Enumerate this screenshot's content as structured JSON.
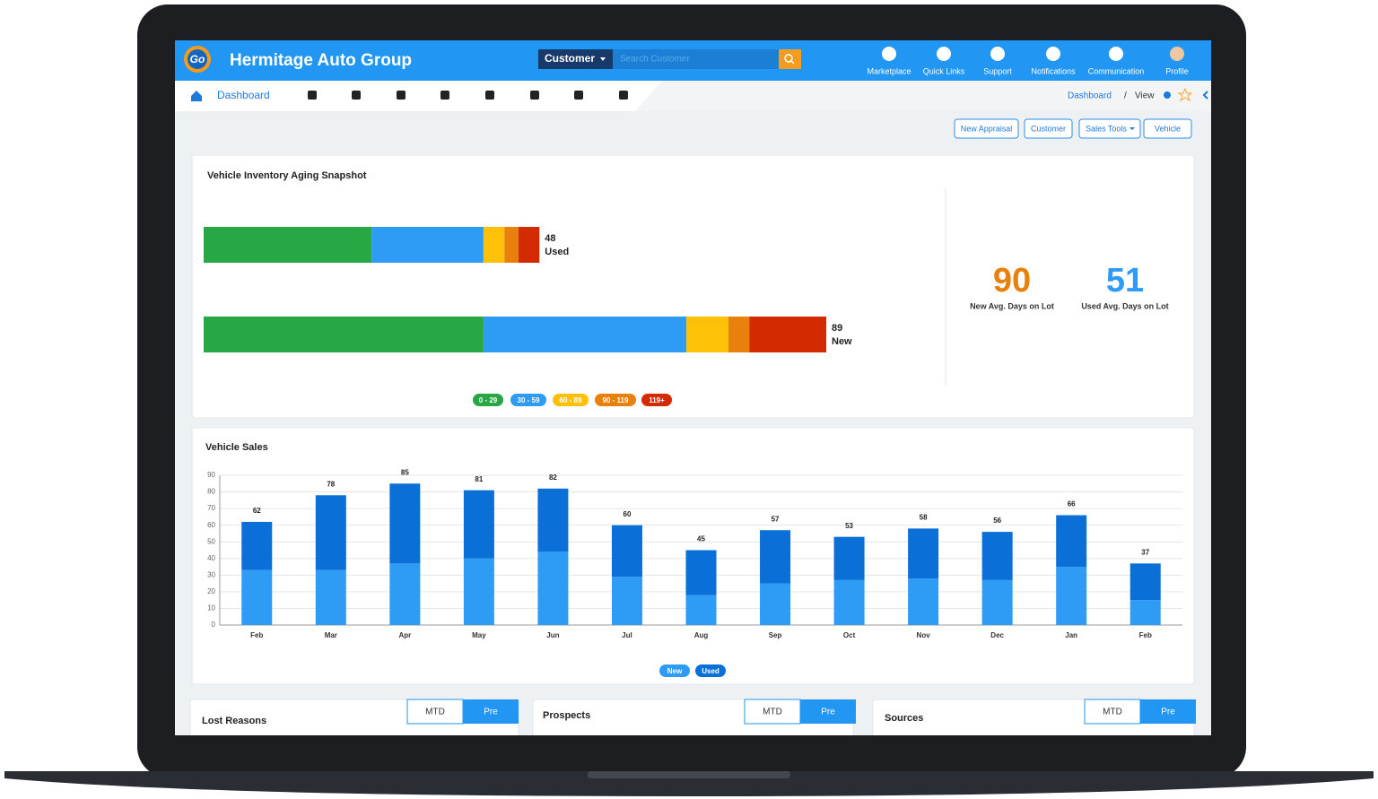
{
  "header": {
    "logo": "Go",
    "brand": "Hermitage Auto Group",
    "search_type": "Customer",
    "search_placeholder": "Search Customer",
    "nav": [
      "Marketplace",
      "Quick Links",
      "Support",
      "Notifications",
      "Communication",
      "Profile"
    ]
  },
  "toolbar": {
    "tab": "Dashboard",
    "breadcrumb": [
      "Dashboard",
      "View"
    ]
  },
  "actions": [
    "New Appraisal",
    "Customer",
    "Sales Tools",
    "Vehicle"
  ],
  "chart_data": [
    {
      "type": "bar",
      "orientation": "horizontal",
      "stacked": true,
      "title": "Vehicle Inventory Aging Snapshot",
      "categories": [
        "Used",
        "New"
      ],
      "totals": [
        48,
        89
      ],
      "series": [
        {
          "name": "0 - 29",
          "color": "#28a745",
          "values": [
            24,
            40
          ]
        },
        {
          "name": "30 - 59",
          "color": "#2e9bf5",
          "values": [
            16,
            29
          ]
        },
        {
          "name": "60 - 89",
          "color": "#ffc107",
          "values": [
            3,
            6
          ]
        },
        {
          "name": "90 - 119",
          "color": "#e8800c",
          "values": [
            2,
            3
          ]
        },
        {
          "name": "119+",
          "color": "#d42a00",
          "values": [
            3,
            11
          ]
        }
      ]
    },
    {
      "type": "bar",
      "orientation": "vertical",
      "stacked": true,
      "title": "Vehicle Sales",
      "categories": [
        "Feb",
        "Mar",
        "Apr",
        "May",
        "Jun",
        "Jul",
        "Aug",
        "Sep",
        "Oct",
        "Nov",
        "Dec",
        "Jan",
        "Feb"
      ],
      "totals": [
        62,
        78,
        85,
        81,
        82,
        60,
        45,
        57,
        53,
        58,
        56,
        66,
        37
      ],
      "series": [
        {
          "name": "New",
          "color": "#2e9bf5",
          "values": [
            33,
            33,
            37,
            40,
            44,
            29,
            18,
            25,
            27,
            28,
            27,
            35,
            15
          ]
        },
        {
          "name": "Used",
          "color": "#0a6fd6",
          "values": [
            29,
            45,
            48,
            41,
            38,
            31,
            27,
            32,
            26,
            30,
            29,
            31,
            22
          ]
        }
      ],
      "ylim": [
        0,
        90
      ],
      "yticks": [
        0,
        10,
        20,
        30,
        40,
        50,
        60,
        70,
        80,
        90
      ],
      "grid": true
    }
  ],
  "kpis": [
    {
      "value": 90,
      "label": "New Avg. Days on Lot",
      "color": "#e8800c"
    },
    {
      "value": 51,
      "label": "Used Avg. Days on Lot",
      "color": "#2e9bf5"
    }
  ],
  "panels": [
    {
      "title": "Lost Reasons",
      "toggle": [
        "MTD",
        "Pre"
      ]
    },
    {
      "title": "Prospects",
      "toggle": [
        "MTD",
        "Pre"
      ]
    },
    {
      "title": "Sources",
      "toggle": [
        "MTD",
        "Pre"
      ]
    }
  ]
}
